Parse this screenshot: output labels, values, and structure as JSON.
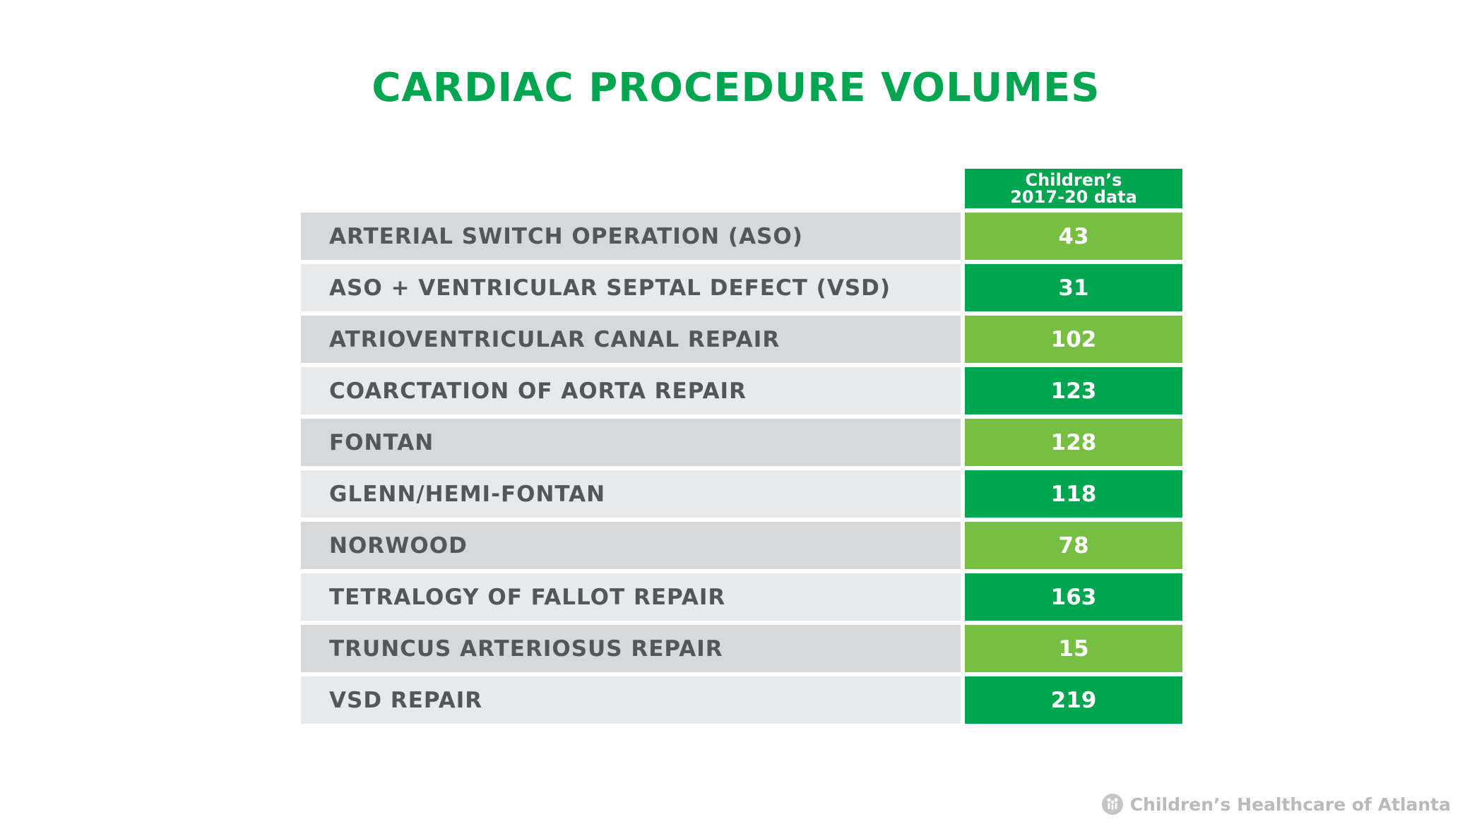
{
  "title": "CARDIAC PROCEDURE VOLUMES",
  "header": {
    "line1": "Children’s",
    "line2": "2017-20 data"
  },
  "colors": {
    "title": "#00a64f",
    "dark_green": "#00a64f",
    "light_green": "#76bf43",
    "label_gray_dark": "#d7d8da",
    "label_gray_light": "#e8e9eb",
    "label_text": "#555658"
  },
  "rows": [
    {
      "label": "ARTERIAL SWITCH OPERATION (ASO)",
      "value": "43"
    },
    {
      "label": "ASO + VENTRICULAR SEPTAL DEFECT (VSD)",
      "value": "31"
    },
    {
      "label": "ATRIOVENTRICULAR CANAL REPAIR",
      "value": "102"
    },
    {
      "label": "COARCTATION OF AORTA REPAIR",
      "value": "123"
    },
    {
      "label": "FONTAN",
      "value": "128"
    },
    {
      "label": "GLENN/HEMI-FONTAN",
      "value": "118"
    },
    {
      "label": "NORWOOD",
      "value": "78"
    },
    {
      "label": "TETRALOGY OF FALLOT REPAIR",
      "value": "163"
    },
    {
      "label": "TRUNCUS ARTERIOSUS REPAIR",
      "value": "15"
    },
    {
      "label": "VSD REPAIR",
      "value": "219"
    }
  ],
  "chart_data": {
    "type": "table",
    "title": "CARDIAC PROCEDURE VOLUMES",
    "columns": [
      "",
      "Children’s 2017-20 data"
    ],
    "categories": [
      "ARTERIAL SWITCH OPERATION (ASO)",
      "ASO + VENTRICULAR SEPTAL DEFECT (VSD)",
      "ATRIOVENTRICULAR CANAL REPAIR",
      "COARCTATION OF AORTA REPAIR",
      "FONTAN",
      "GLENN/HEMI-FONTAN",
      "NORWOOD",
      "TETRALOGY OF FALLOT REPAIR",
      "TRUNCUS ARTERIOSUS REPAIR",
      "VSD REPAIR"
    ],
    "values": [
      43,
      31,
      102,
      123,
      128,
      118,
      78,
      163,
      15,
      219
    ]
  },
  "footer": {
    "brand": "Children’s Healthcare of Atlanta",
    "icon": "childrens-healthcare-logo-icon"
  }
}
